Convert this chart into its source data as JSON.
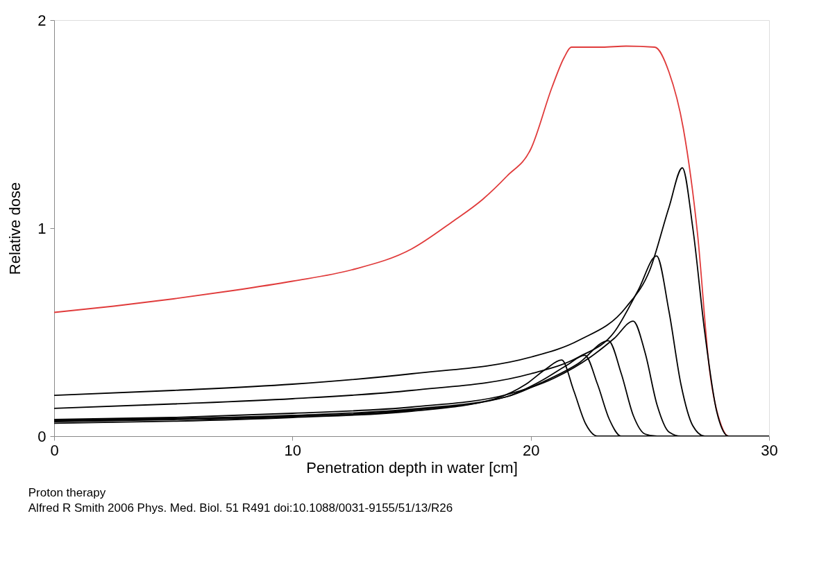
{
  "chart_data": {
    "type": "line",
    "xlabel": "Penetration depth in water [cm]",
    "ylabel": "Relative dose",
    "xlim": [
      0,
      30
    ],
    "xticks": [
      0,
      10,
      20,
      30
    ],
    "ylim": [
      0,
      2
    ],
    "yticks": [
      0,
      1,
      2
    ],
    "grid": false,
    "legend": false,
    "marker": "none",
    "line_style": "solid",
    "series": [
      {
        "color": "#e03a3a",
        "x": [
          0,
          2.5,
          5,
          7.5,
          10,
          12.5,
          15,
          16.7,
          18,
          19,
          20,
          20.9,
          21.4,
          21.7,
          23,
          24,
          25.2,
          25.8,
          26.4,
          27,
          27.5,
          28,
          28.3,
          30
        ],
        "values": [
          0.595,
          0.625,
          0.66,
          0.7,
          0.745,
          0.8,
          0.9,
          1.03,
          1.14,
          1.25,
          1.38,
          1.68,
          1.82,
          1.87,
          1.87,
          1.875,
          1.87,
          1.75,
          1.48,
          0.97,
          0.32,
          0.05,
          0,
          0
        ]
      },
      {
        "color": "#000000",
        "x": [
          0,
          5,
          10,
          15,
          20,
          22,
          24,
          25,
          25.8,
          26.36,
          26.8,
          27.3,
          27.8,
          28.3,
          30
        ],
        "values": [
          0.196,
          0.22,
          0.25,
          0.3,
          0.38,
          0.46,
          0.62,
          0.8,
          1.1,
          1.29,
          1.0,
          0.5,
          0.12,
          0,
          0
        ]
      },
      {
        "color": "#000000",
        "x": [
          0,
          5,
          10,
          15,
          20,
          22,
          23.5,
          24.5,
          25.28,
          25.8,
          26.3,
          26.8,
          27.3,
          30
        ],
        "values": [
          0.134,
          0.155,
          0.18,
          0.22,
          0.3,
          0.38,
          0.5,
          0.7,
          0.866,
          0.6,
          0.25,
          0.05,
          0,
          0
        ]
      },
      {
        "color": "#000000",
        "x": [
          0,
          5,
          10,
          15,
          19,
          21,
          22.5,
          23.5,
          24.3,
          24.8,
          25.3,
          25.8,
          26.3,
          30
        ],
        "values": [
          0.08,
          0.09,
          0.11,
          0.14,
          0.2,
          0.28,
          0.38,
          0.47,
          0.553,
          0.4,
          0.15,
          0.02,
          0,
          0
        ]
      },
      {
        "color": "#000000",
        "x": [
          0,
          5,
          10,
          15,
          19,
          20.5,
          22,
          23.26,
          23.8,
          24.3,
          24.8,
          25.3,
          30
        ],
        "values": [
          0.075,
          0.085,
          0.1,
          0.13,
          0.19,
          0.26,
          0.35,
          0.459,
          0.3,
          0.1,
          0.01,
          0,
          0
        ]
      },
      {
        "color": "#000000",
        "x": [
          0,
          5,
          10,
          15,
          19,
          20.5,
          21.5,
          22.27,
          22.8,
          23.3,
          23.8,
          30
        ],
        "values": [
          0.07,
          0.08,
          0.095,
          0.125,
          0.19,
          0.27,
          0.34,
          0.389,
          0.25,
          0.08,
          0,
          0
        ]
      },
      {
        "color": "#000000",
        "x": [
          0,
          5,
          10,
          15,
          18.5,
          19.8,
          20.6,
          21.3,
          21.8,
          22.3,
          22.8,
          30
        ],
        "values": [
          0.062,
          0.072,
          0.09,
          0.12,
          0.18,
          0.25,
          0.32,
          0.366,
          0.22,
          0.06,
          0,
          0
        ]
      }
    ],
    "annotations": [
      "Proton therapy",
      "Alfred R Smith 2006 Phys. Med. Biol. 51 R491 doi:10.1088/0031-9155/51/13/R26"
    ]
  }
}
